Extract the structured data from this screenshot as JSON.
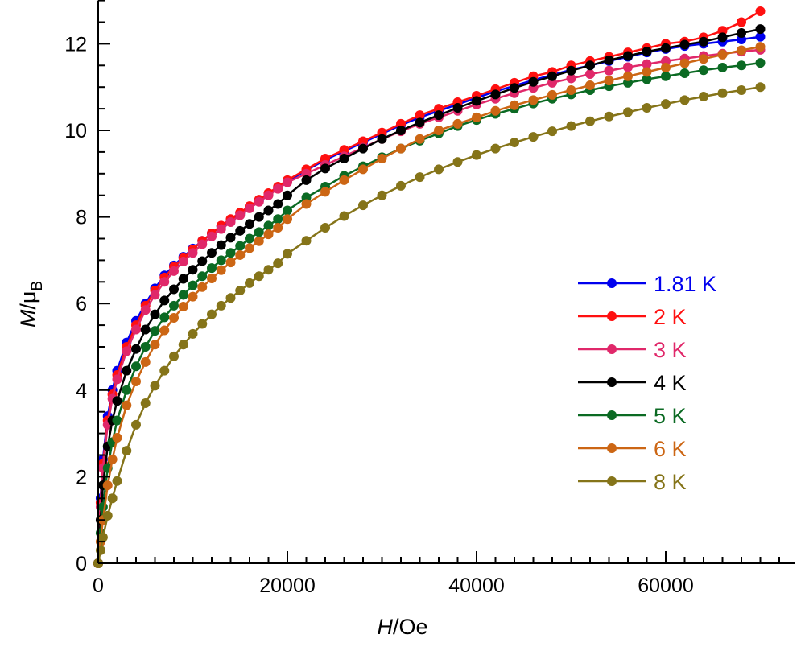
{
  "chart_data": {
    "type": "line",
    "title": "",
    "xlabel": {
      "italic": "H",
      "rest": "/Oe"
    },
    "ylabel": {
      "italic": "M",
      "rest": "/μ",
      "sub": "B"
    },
    "xlim": [
      0,
      73700
    ],
    "ylim": [
      0,
      13
    ],
    "xticks": [
      0,
      20000,
      40000,
      60000
    ],
    "xtick_labels": [
      "0",
      "20000",
      "40000",
      "60000"
    ],
    "x_minor_step": 2000,
    "yticks": [
      0,
      2,
      4,
      6,
      8,
      10,
      12
    ],
    "ytick_labels": [
      "0",
      "2",
      "4",
      "6",
      "8",
      "10",
      "12"
    ],
    "y_minor_step": 0.5,
    "grid": false,
    "legend_position": "right-middle",
    "x": [
      0,
      250,
      500,
      1000,
      1500,
      2000,
      3000,
      4000,
      5000,
      6000,
      7000,
      8000,
      9000,
      10000,
      11000,
      12000,
      13000,
      14000,
      15000,
      16000,
      17000,
      18000,
      19000,
      20000,
      22000,
      24000,
      26000,
      28000,
      30000,
      32000,
      34000,
      36000,
      38000,
      40000,
      42000,
      44000,
      46000,
      48000,
      50000,
      52000,
      54000,
      56000,
      58000,
      60000,
      62000,
      64000,
      66000,
      68000,
      70000
    ],
    "series": [
      {
        "name": "1.81 K",
        "color": "#0000ee",
        "values": [
          0,
          1.5,
          2.4,
          3.4,
          4.0,
          4.45,
          5.1,
          5.6,
          6.0,
          6.35,
          6.65,
          6.88,
          7.08,
          7.27,
          7.45,
          7.62,
          7.78,
          7.93,
          8.08,
          8.22,
          8.37,
          8.52,
          8.67,
          8.82,
          9.08,
          9.32,
          9.52,
          9.72,
          9.92,
          10.12,
          10.3,
          10.45,
          10.6,
          10.75,
          10.9,
          11.03,
          11.16,
          11.28,
          11.4,
          11.5,
          11.6,
          11.7,
          11.8,
          11.88,
          11.95,
          12.0,
          12.05,
          12.1,
          12.16
        ]
      },
      {
        "name": "2 K",
        "color": "#ff1010",
        "values": [
          0,
          1.4,
          2.3,
          3.3,
          3.9,
          4.35,
          5.0,
          5.5,
          5.95,
          6.3,
          6.6,
          6.85,
          7.05,
          7.25,
          7.45,
          7.62,
          7.8,
          7.95,
          8.1,
          8.25,
          8.4,
          8.55,
          8.7,
          8.85,
          9.1,
          9.35,
          9.55,
          9.75,
          9.95,
          10.15,
          10.35,
          10.5,
          10.65,
          10.8,
          10.95,
          11.1,
          11.25,
          11.35,
          11.5,
          11.6,
          11.7,
          11.8,
          11.9,
          12.0,
          12.05,
          12.15,
          12.3,
          12.5,
          12.75
        ]
      },
      {
        "name": "3 K",
        "color": "#e0286a",
        "values": [
          0,
          1.3,
          2.2,
          3.2,
          3.8,
          4.25,
          4.9,
          5.4,
          5.85,
          6.2,
          6.5,
          6.75,
          6.97,
          7.17,
          7.37,
          7.55,
          7.72,
          7.88,
          8.04,
          8.2,
          8.35,
          8.5,
          8.65,
          8.8,
          9.0,
          9.2,
          9.4,
          9.6,
          9.8,
          9.98,
          10.15,
          10.3,
          10.45,
          10.6,
          10.73,
          10.86,
          10.98,
          11.1,
          11.2,
          11.3,
          11.38,
          11.46,
          11.53,
          11.6,
          11.66,
          11.72,
          11.77,
          11.82,
          11.86
        ]
      },
      {
        "name": "4 K",
        "color": "#000000",
        "values": [
          0,
          1.0,
          1.8,
          2.7,
          3.3,
          3.75,
          4.45,
          4.95,
          5.4,
          5.75,
          6.07,
          6.33,
          6.57,
          6.78,
          6.98,
          7.17,
          7.35,
          7.52,
          7.68,
          7.84,
          8.0,
          8.15,
          8.3,
          8.5,
          8.85,
          9.12,
          9.35,
          9.58,
          9.8,
          10.0,
          10.18,
          10.35,
          10.52,
          10.68,
          10.83,
          10.98,
          11.12,
          11.25,
          11.38,
          11.5,
          11.62,
          11.72,
          11.82,
          11.9,
          11.98,
          12.05,
          12.15,
          12.25,
          12.34
        ]
      },
      {
        "name": "5 K",
        "color": "#0b6a23",
        "values": [
          0,
          0.7,
          1.3,
          2.2,
          2.8,
          3.3,
          4.0,
          4.55,
          5.0,
          5.37,
          5.68,
          5.95,
          6.2,
          6.42,
          6.63,
          6.82,
          7.0,
          7.17,
          7.33,
          7.5,
          7.65,
          7.8,
          7.95,
          8.15,
          8.45,
          8.7,
          8.95,
          9.17,
          9.38,
          9.58,
          9.76,
          9.93,
          10.1,
          10.24,
          10.38,
          10.5,
          10.62,
          10.73,
          10.83,
          10.93,
          11.02,
          11.1,
          11.18,
          11.25,
          11.32,
          11.39,
          11.45,
          11.5,
          11.56
        ]
      },
      {
        "name": "6 K",
        "color": "#cc6614",
        "values": [
          0,
          0.5,
          1.0,
          1.8,
          2.4,
          2.9,
          3.65,
          4.2,
          4.65,
          5.05,
          5.38,
          5.67,
          5.93,
          6.16,
          6.38,
          6.58,
          6.77,
          6.95,
          7.12,
          7.28,
          7.44,
          7.6,
          7.75,
          7.95,
          8.3,
          8.58,
          8.85,
          9.1,
          9.35,
          9.58,
          9.8,
          10.0,
          10.15,
          10.3,
          10.45,
          10.58,
          10.7,
          10.82,
          10.93,
          11.04,
          11.15,
          11.25,
          11.35,
          11.45,
          11.55,
          11.65,
          11.75,
          11.85,
          11.93
        ]
      },
      {
        "name": "8 K",
        "color": "#857419",
        "values": [
          0,
          0.3,
          0.6,
          1.1,
          1.5,
          1.9,
          2.6,
          3.2,
          3.7,
          4.1,
          4.45,
          4.78,
          5.05,
          5.3,
          5.53,
          5.75,
          5.95,
          6.13,
          6.3,
          6.47,
          6.63,
          6.78,
          6.93,
          7.15,
          7.45,
          7.75,
          8.02,
          8.27,
          8.5,
          8.72,
          8.92,
          9.1,
          9.27,
          9.43,
          9.58,
          9.72,
          9.85,
          9.98,
          10.1,
          10.21,
          10.32,
          10.42,
          10.52,
          10.61,
          10.7,
          10.78,
          10.86,
          10.93,
          11.0
        ]
      }
    ]
  }
}
